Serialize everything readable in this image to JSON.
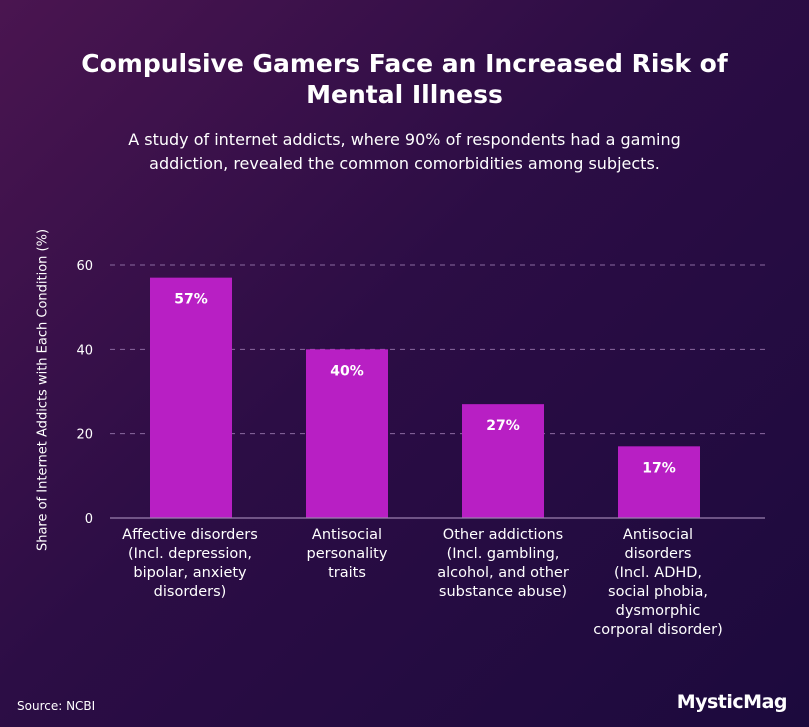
{
  "chart_data": {
    "type": "bar",
    "title": "Compulsive Gamers Face an Increased Risk of Mental Illness",
    "subtitle": "A study of internet addicts, where 90% of respondents had a gaming addiction, revealed the common comorbidities among subjects.",
    "ylabel": "Share of Internet Addicts with Each Condition (%)",
    "xlabel": "",
    "ylim": [
      0,
      60
    ],
    "yticks": [
      0,
      20,
      40,
      60
    ],
    "grid": true,
    "categories": [
      "Affective disorders (Incl. depression, bipolar, anxiety disorders)",
      "Antisocial personality traits",
      "Other addictions (Incl. gambling, alcohol, and other substance abuse)",
      "Antisocial disorders (Incl. ADHD, social phobia, dysmorphic corporal disorder)"
    ],
    "values": [
      57,
      40,
      27,
      17
    ],
    "data_labels": [
      "57%",
      "40%",
      "27%",
      "17%"
    ],
    "bar_color": "#b81fc4",
    "grid_color": "#8a6aa0"
  },
  "footer": {
    "source": "Source: NCBI",
    "brand": "MysticMag"
  }
}
